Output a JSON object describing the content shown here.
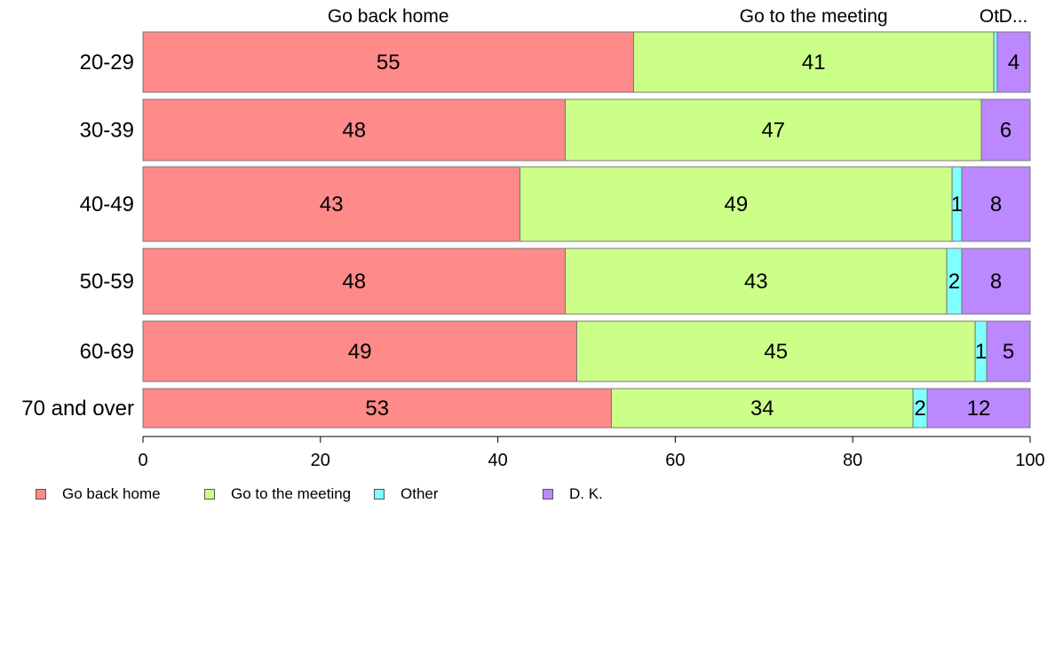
{
  "chart_data": {
    "type": "bar",
    "orientation": "horizontal",
    "stacked": true,
    "title": "",
    "xlabel": "",
    "ylabel": "",
    "xlim": [
      0,
      100
    ],
    "x_ticks": [
      "0",
      "20",
      "40",
      "60",
      "80",
      "100"
    ],
    "categories": [
      "20-29",
      "30-39",
      "40-49",
      "50-59",
      "60-69",
      "70 and over"
    ],
    "top_labels": [
      "Go back home",
      "Go to the meeting",
      "Ot",
      "D..."
    ],
    "series": [
      {
        "name": "Go back home",
        "color": "#ff8a8a",
        "values": [
          55.3,
          47.6,
          42.5,
          47.6,
          48.9,
          52.8
        ],
        "labels": [
          "55",
          "48",
          "43",
          "48",
          "49",
          "53"
        ]
      },
      {
        "name": "Go to the meeting",
        "color": "#ccff88",
        "values": [
          40.6,
          46.9,
          48.7,
          43.0,
          44.9,
          34.0
        ],
        "labels": [
          "41",
          "47",
          "49",
          "43",
          "45",
          "34"
        ]
      },
      {
        "name": "Other",
        "color": "#80ffff",
        "values": [
          0.4,
          0.0,
          1.1,
          1.7,
          1.3,
          1.6
        ],
        "labels": [
          "",
          "",
          "1",
          "2",
          "1",
          "2"
        ]
      },
      {
        "name": "D. K.",
        "color": "#bb88ff",
        "values": [
          3.7,
          5.5,
          7.7,
          7.7,
          4.9,
          11.6
        ],
        "labels": [
          "4",
          "6",
          "8",
          "8",
          "5",
          "12"
        ]
      }
    ],
    "legend_position": "bottom-left",
    "grid": false
  }
}
